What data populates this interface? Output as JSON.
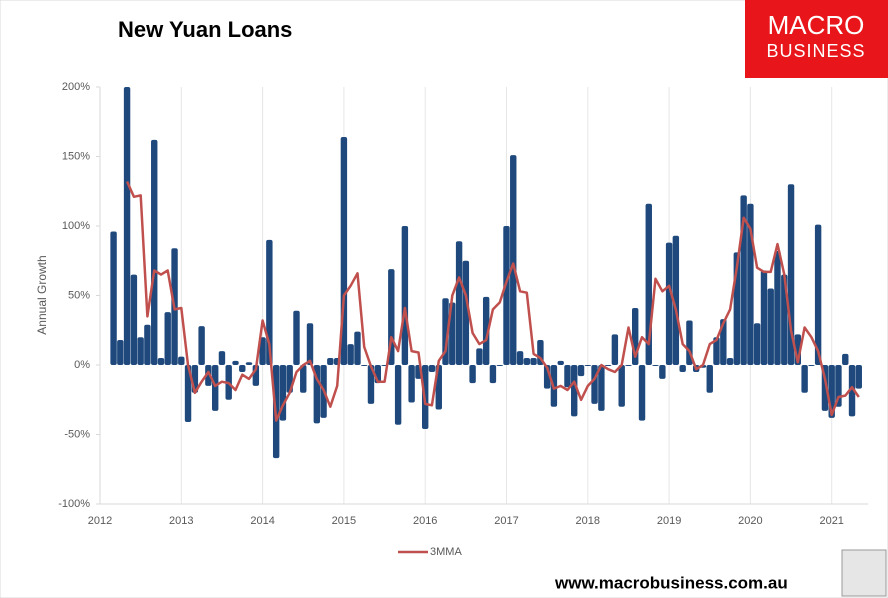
{
  "chart_data": {
    "type": "bar",
    "title": "New Yuan Loans",
    "y_label": "Annual Growth",
    "x": [
      2012.167,
      2012.25,
      2012.333,
      2012.417,
      2012.5,
      2012.583,
      2012.667,
      2012.75,
      2012.833,
      2012.917,
      2013,
      2013.083,
      2013.167,
      2013.25,
      2013.333,
      2013.417,
      2013.5,
      2013.583,
      2013.667,
      2013.75,
      2013.833,
      2013.917,
      2014,
      2014.083,
      2014.167,
      2014.25,
      2014.333,
      2014.417,
      2014.5,
      2014.583,
      2014.667,
      2014.75,
      2014.833,
      2014.917,
      2015,
      2015.083,
      2015.167,
      2015.25,
      2015.333,
      2015.417,
      2015.5,
      2015.583,
      2015.667,
      2015.75,
      2015.833,
      2015.917,
      2016,
      2016.083,
      2016.167,
      2016.25,
      2016.333,
      2016.417,
      2016.5,
      2016.583,
      2016.667,
      2016.75,
      2016.833,
      2016.917,
      2017,
      2017.083,
      2017.167,
      2017.25,
      2017.333,
      2017.417,
      2017.5,
      2017.583,
      2017.667,
      2017.75,
      2017.833,
      2017.917,
      2018,
      2018.083,
      2018.167,
      2018.25,
      2018.333,
      2018.417,
      2018.5,
      2018.583,
      2018.667,
      2018.75,
      2018.833,
      2018.917,
      2019,
      2019.083,
      2019.167,
      2019.25,
      2019.333,
      2019.417,
      2019.5,
      2019.583,
      2019.667,
      2019.75,
      2019.833,
      2019.917,
      2020,
      2020.083,
      2020.167,
      2020.25,
      2020.333,
      2020.417,
      2020.5,
      2020.583,
      2020.667,
      2020.75,
      2020.833,
      2020.917,
      2021,
      2021.083,
      2021.167,
      2021.25,
      2021.333
    ],
    "series": [
      {
        "type": "bar",
        "color": "#1f497d",
        "values": [
          96,
          18,
          200,
          65,
          20,
          29,
          162,
          5,
          38,
          84,
          6,
          -41,
          -20,
          28,
          -15,
          -33,
          10,
          -25,
          3,
          -5,
          2,
          -15,
          20,
          90,
          -67,
          -40,
          -20,
          39,
          -20,
          30,
          -42,
          -38,
          5,
          5,
          164,
          15,
          24,
          0,
          -28,
          -13,
          0,
          69,
          -43,
          100,
          -27,
          -10,
          -46,
          -5,
          -32,
          48,
          45,
          89,
          75,
          -13,
          12,
          49,
          -13,
          0,
          100,
          151,
          10,
          5,
          5,
          18,
          -17,
          -30,
          3,
          -16,
          -37,
          -8,
          0,
          -28,
          -33,
          0,
          22,
          -30,
          0,
          41,
          -40,
          116,
          0,
          -10,
          88,
          93,
          -5,
          32,
          -5,
          -2,
          -20,
          20,
          33,
          5,
          81,
          122,
          116,
          30,
          68,
          55,
          82,
          65,
          130,
          22,
          -20,
          0,
          101,
          -33,
          -38,
          -30,
          8,
          -37,
          -17
        ]
      },
      {
        "type": "line",
        "name": "3MMA",
        "color": "#c0504d",
        "values": [
          null,
          null,
          132,
          121,
          122,
          35,
          68,
          65,
          68,
          40,
          41,
          0,
          -20,
          -12,
          -5,
          -15,
          -12,
          -13,
          -18,
          -7,
          -10,
          -3,
          32,
          15,
          -40,
          -29,
          -20,
          -5,
          0,
          3,
          -10,
          -18,
          -30,
          -15,
          50,
          57,
          66,
          13,
          -1,
          -12,
          -12,
          20,
          10,
          41,
          10,
          9,
          -28,
          -29,
          3,
          10,
          50,
          63,
          50,
          23,
          15,
          18,
          40,
          45,
          60,
          73,
          53,
          52,
          8,
          5,
          -2,
          -17,
          -15,
          -18,
          -12,
          -25,
          -15,
          -10,
          0,
          -3,
          -5,
          0,
          27,
          6,
          20,
          15,
          62,
          53,
          57,
          40,
          15,
          10,
          -3,
          0,
          15,
          18,
          30,
          40,
          70,
          106,
          98,
          70,
          67,
          67,
          87,
          65,
          25,
          2,
          27,
          20,
          10,
          -10,
          -36,
          -23,
          -22,
          -16,
          -23
        ]
      }
    ],
    "xlim": [
      2012,
      2021.45
    ],
    "xticks": [
      2012,
      2013,
      2014,
      2015,
      2016,
      2017,
      2018,
      2019,
      2020,
      2021
    ],
    "ylim": [
      -100,
      200
    ],
    "yticks": [
      {
        "value": -100,
        "label": "-100%"
      },
      {
        "value": -50,
        "label": "-50%"
      },
      {
        "value": 0,
        "label": "0%"
      },
      {
        "value": 50,
        "label": "50%"
      },
      {
        "value": 100,
        "label": "100%"
      },
      {
        "value": 150,
        "label": "150%"
      },
      {
        "value": 200,
        "label": "200%"
      }
    ],
    "grid": "x",
    "legend": "bottom"
  },
  "logo": {
    "line1": "MACRO",
    "line2": "BUSINESS"
  },
  "footer": "www.macrobusiness.com.au"
}
